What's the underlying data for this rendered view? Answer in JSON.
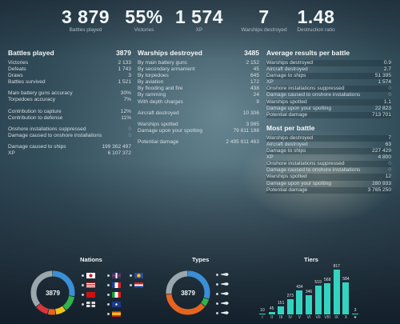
{
  "summary": [
    {
      "value": "3 879",
      "label": "Battles played"
    },
    {
      "value": "55%",
      "label": "Victories"
    },
    {
      "value": "1 574",
      "label": "XP"
    },
    {
      "value": "7",
      "label": "Warships destroyed"
    },
    {
      "value": "1.48",
      "label": "Destruction ratio"
    }
  ],
  "battles": {
    "title": "Battles played",
    "total": "3879",
    "rows1": [
      {
        "label": "Victories",
        "value": "2 133"
      },
      {
        "label": "Defeats",
        "value": "1 743"
      },
      {
        "label": "Draws",
        "value": "3"
      },
      {
        "label": "Battles survived",
        "value": "1 521"
      }
    ],
    "rows2": [
      {
        "label": "Main battery guns accuracy",
        "value": "30%"
      },
      {
        "label": "Torpedoes accuracy",
        "value": "7%"
      }
    ],
    "rows3": [
      {
        "label": "Contribution to capture",
        "value": "12%"
      },
      {
        "label": "Contribution to defense",
        "value": "11%"
      }
    ],
    "rows4": [
      {
        "label": "Onshore installations suppressed",
        "value": "0"
      },
      {
        "label": "Damage caused to onshore installations",
        "value": "0"
      }
    ],
    "rows5": [
      {
        "label": "Damage caused to ships",
        "value": "199 362 497"
      },
      {
        "label": "XP",
        "value": "6 107 372"
      }
    ]
  },
  "warships": {
    "title": "Warships destroyed",
    "total": "3485",
    "rows1": [
      {
        "label": "By main battery guns",
        "value": "2 152"
      },
      {
        "label": "By secondary armament",
        "value": "45"
      },
      {
        "label": "By torpedoes",
        "value": "645"
      },
      {
        "label": "By aviation",
        "value": "172"
      },
      {
        "label": "By flooding and fire",
        "value": "438"
      },
      {
        "label": "By ramming",
        "value": "24"
      },
      {
        "label": "With depth charges",
        "value": "9"
      }
    ],
    "rows2": [
      {
        "label": "Aircraft destroyed",
        "value": "10 306"
      }
    ],
    "rows3": [
      {
        "label": "Warships spotted",
        "value": "3 985"
      },
      {
        "label": "Damage upon your spotting",
        "value": "79 811 198"
      }
    ],
    "rows4": [
      {
        "label": "Potential damage",
        "value": "2 495 811 463"
      }
    ]
  },
  "average": {
    "title": "Average results per battle",
    "rows": [
      {
        "label": "Warships destroyed",
        "value": "0.9"
      },
      {
        "label": "Aircraft destroyed",
        "value": "2.7"
      },
      {
        "label": "Damage to ships",
        "value": "51 395"
      },
      {
        "label": "XP",
        "value": "1 574"
      },
      {
        "label": "Onshore installations suppressed",
        "value": "0"
      },
      {
        "label": "Damage caused to onshore installations",
        "value": "0"
      },
      {
        "label": "Warships spotted",
        "value": "1.1"
      },
      {
        "label": "Damage upon your spotting",
        "value": "22 823"
      },
      {
        "label": "Potential damage",
        "value": "713 701"
      }
    ]
  },
  "most": {
    "title": "Most per battle",
    "rows": [
      {
        "label": "Warships destroyed",
        "value": "7"
      },
      {
        "label": "Aircraft destroyed",
        "value": "63"
      },
      {
        "label": "Damage to ships",
        "value": "227 429"
      },
      {
        "label": "XP",
        "value": "4 800"
      },
      {
        "label": "Onshore installations suppressed",
        "value": "0"
      },
      {
        "label": "Damage caused to onshore installations",
        "value": "0"
      },
      {
        "label": "Warships spotted",
        "value": "12"
      },
      {
        "label": "Damage upon your spotting",
        "value": "280 933"
      },
      {
        "label": "Potential damage",
        "value": "3 765 250"
      }
    ]
  },
  "nations": {
    "title": "Nations",
    "center": "3879",
    "segments": [
      {
        "color": "#3a8fd6",
        "value": 28
      },
      {
        "color": "#2fb24a",
        "value": 12
      },
      {
        "color": "#f2c21c",
        "value": 8
      },
      {
        "color": "#e8641e",
        "value": 6
      },
      {
        "color": "#d8363a",
        "value": 10
      },
      {
        "color": "#9aa7ad",
        "value": 36
      }
    ],
    "flags": [
      {
        "name": "japan-flag-icon"
      },
      {
        "name": "uk-flag-icon"
      },
      {
        "name": "commonwealth-flag-icon"
      },
      {
        "name": "usa-flag-icon"
      },
      {
        "name": "france-flag-icon"
      },
      {
        "name": "netherlands-flag-icon"
      },
      {
        "name": "ussr-flag-icon"
      },
      {
        "name": "italy-flag-icon"
      },
      {
        "name": "germany-flag-icon"
      },
      {
        "name": "panasia-flag-icon"
      },
      {
        "name": "spain-flag-icon"
      }
    ]
  },
  "types": {
    "title": "Types",
    "center": "3879",
    "segments": [
      {
        "color": "#3a8fd6",
        "value": 30
      },
      {
        "color": "#2fb24a",
        "value": 6
      },
      {
        "color": "#e8641e",
        "value": 38
      },
      {
        "color": "#9aa7ad",
        "value": 26
      }
    ],
    "icons": [
      "submarine-icon",
      "destroyer-icon",
      "cruiser-icon",
      "battleship-icon",
      "aircraft-carrier-icon"
    ]
  },
  "tiers": {
    "title": "Tiers",
    "chart_data": {
      "type": "bar",
      "categories": [
        "I",
        "II",
        "III",
        "IV",
        "V",
        "VI",
        "VII",
        "VIII",
        "IX",
        "X",
        "★"
      ],
      "values": [
        10,
        45,
        151,
        273,
        434,
        346,
        519,
        568,
        817,
        584,
        3
      ]
    }
  }
}
